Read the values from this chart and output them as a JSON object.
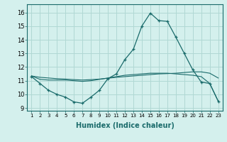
{
  "xlabel": "Humidex (Indice chaleur)",
  "x": [
    1,
    2,
    3,
    4,
    5,
    6,
    7,
    8,
    9,
    10,
    11,
    12,
    13,
    14,
    15,
    16,
    17,
    18,
    19,
    20,
    21,
    22,
    23
  ],
  "line2": [
    11.3,
    10.8,
    10.3,
    10.0,
    9.8,
    9.45,
    9.35,
    9.8,
    10.3,
    11.15,
    11.5,
    12.55,
    13.3,
    15.0,
    15.95,
    15.4,
    15.35,
    14.2,
    13.0,
    11.8,
    10.9,
    10.8,
    9.5
  ],
  "line3": [
    11.35,
    11.1,
    11.05,
    11.05,
    11.05,
    11.0,
    10.95,
    11.0,
    11.1,
    11.2,
    11.3,
    11.4,
    11.45,
    11.5,
    11.55,
    11.55,
    11.55,
    11.5,
    11.45,
    11.4,
    11.3,
    10.8,
    9.5
  ],
  "line4": [
    11.35,
    11.25,
    11.2,
    11.15,
    11.12,
    11.08,
    11.05,
    11.08,
    11.12,
    11.18,
    11.25,
    11.3,
    11.35,
    11.4,
    11.45,
    11.5,
    11.52,
    11.55,
    11.6,
    11.65,
    11.65,
    11.55,
    11.2
  ],
  "line_color": "#1a6b6b",
  "bg_color": "#d4f0ed",
  "grid_color": "#b0d8d4",
  "ylim": [
    8.8,
    16.6
  ],
  "yticks": [
    9,
    10,
    11,
    12,
    13,
    14,
    15,
    16
  ],
  "xticks": [
    1,
    2,
    3,
    4,
    5,
    6,
    7,
    8,
    9,
    10,
    11,
    12,
    13,
    14,
    15,
    16,
    17,
    18,
    19,
    20,
    21,
    22,
    23
  ]
}
